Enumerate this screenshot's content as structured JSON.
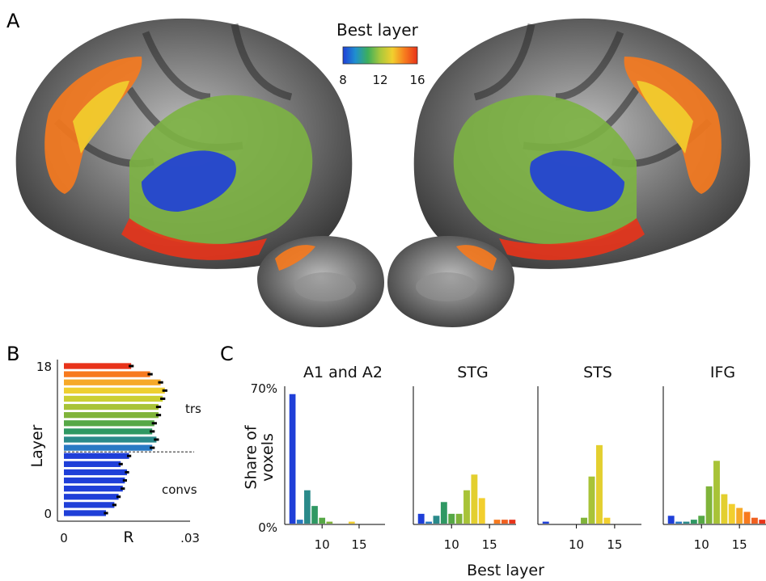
{
  "panels": {
    "a": "A",
    "b": "B",
    "c": "C"
  },
  "colorbar": {
    "title": "Best layer",
    "ticks": [
      "8",
      "12",
      "16"
    ],
    "colors": [
      "#1f3fd8",
      "#1f8fd0",
      "#3cae5c",
      "#a9c83c",
      "#f2cf2e",
      "#f77a1e",
      "#e8331a"
    ]
  },
  "brain_colors": {
    "cortex_dark": "#3a3a3a",
    "cortex_light": "#bdbdbd",
    "blue": "#1f3fd8",
    "green": "#7cb342",
    "yellow": "#f2cf2e",
    "orange": "#f77a1e",
    "red": "#e8331a"
  },
  "chart_data": [
    {
      "type": "bar",
      "orientation": "horizontal",
      "ylabel": "Layer",
      "xlabel": "R",
      "xticks": [
        "0",
        ".03"
      ],
      "yticks": [
        "0",
        "18"
      ],
      "xlim": [
        0,
        0.03
      ],
      "ylim": [
        0,
        18
      ],
      "group_labels": [
        "convs",
        "trs"
      ],
      "divider_between_layers": [
        7,
        8
      ],
      "layers": [
        0,
        1,
        2,
        3,
        4,
        5,
        6,
        7,
        8,
        9,
        10,
        11,
        12,
        13,
        14,
        15,
        16,
        17,
        18
      ],
      "values": [
        0.01,
        0.012,
        0.013,
        0.014,
        0.0145,
        0.015,
        0.0135,
        0.0155,
        0.021,
        0.022,
        0.021,
        0.0215,
        0.0225,
        0.0225,
        0.0235,
        0.024,
        0.023,
        0.0205,
        0.016
      ],
      "errors": [
        0.0005,
        0.0005,
        0.0005,
        0.0005,
        0.0005,
        0.0005,
        0.0005,
        0.0005,
        0.0006,
        0.0006,
        0.0006,
        0.0006,
        0.0006,
        0.0006,
        0.0006,
        0.0006,
        0.0006,
        0.0006,
        0.0006
      ],
      "colors": [
        "#1f3fd8",
        "#1f3fd8",
        "#1f3fd8",
        "#1f3fd8",
        "#1f3fd8",
        "#1f3fd8",
        "#1f3fd8",
        "#1f3fd8",
        "#2979c4",
        "#2a8a8a",
        "#2f9863",
        "#56a846",
        "#80b43a",
        "#a8c337",
        "#cbcf32",
        "#efcf2f",
        "#f6a928",
        "#f77a1e",
        "#e8331a"
      ]
    },
    {
      "type": "bar",
      "ylabel": "Share of\nvoxels",
      "xlabel": "Best layer",
      "yticks": [
        "0%",
        "70%"
      ],
      "ylim": [
        0,
        70
      ],
      "xticks": [
        "10",
        "15"
      ],
      "xlim": [
        5.5,
        18.5
      ],
      "categories": [
        6,
        7,
        8,
        9,
        10,
        11,
        12,
        13,
        14,
        15,
        16,
        17,
        18
      ],
      "colors": [
        "#1f3fd8",
        "#2979c4",
        "#2a8a8a",
        "#2f9863",
        "#56a846",
        "#80b43a",
        "#a8c337",
        "#e3cf2f",
        "#f2cf2e",
        "#f6a928",
        "#f77a1e",
        "#f06020",
        "#e8331a"
      ],
      "series": [
        {
          "name": "A1 and A2",
          "values": [
            66,
            2,
            17,
            9,
            3,
            1,
            0,
            0,
            1,
            0,
            0,
            0,
            0
          ]
        },
        {
          "name": "STG",
          "values": [
            5,
            1,
            4,
            11,
            5,
            5,
            17,
            25,
            13,
            0,
            2,
            2,
            2
          ]
        },
        {
          "name": "STS",
          "values": [
            1,
            0,
            0,
            0,
            0,
            3,
            24,
            40,
            3,
            0,
            0,
            0,
            0
          ]
        },
        {
          "name": "IFG",
          "values": [
            4,
            1,
            1,
            2,
            4,
            19,
            32,
            15,
            10,
            8,
            6,
            3,
            2
          ]
        }
      ]
    }
  ]
}
